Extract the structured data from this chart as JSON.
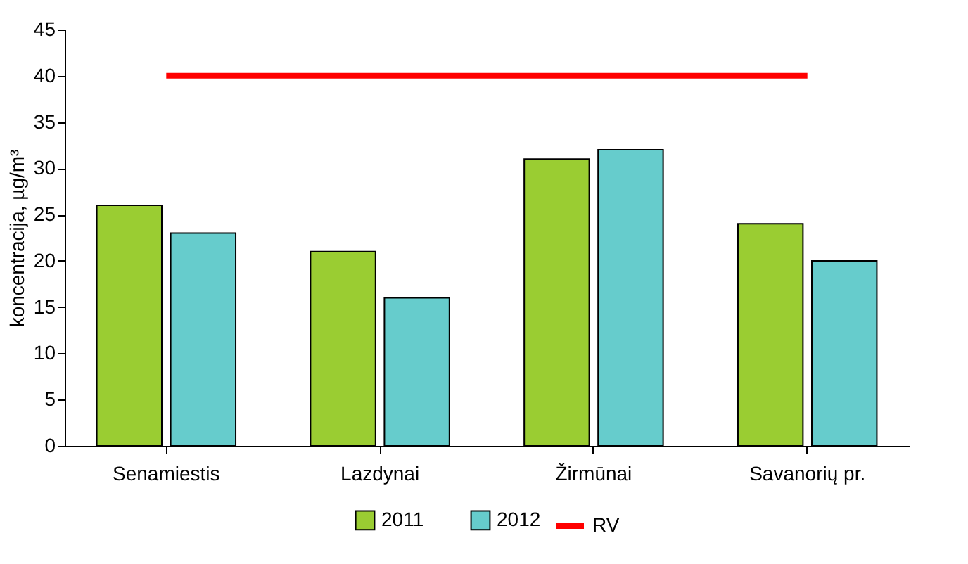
{
  "chart_data": {
    "type": "bar",
    "ylabel": "koncentracija, µg/m³",
    "categories": [
      "Senamiestis",
      "Lazdynai",
      "Žirmūnai",
      "Savanorių pr."
    ],
    "series": [
      {
        "name": "2011",
        "color": "#9acd32",
        "values": [
          26,
          21,
          31,
          24
        ]
      },
      {
        "name": "2012",
        "color": "#66cccc",
        "values": [
          23,
          16,
          32,
          20
        ]
      },
      {
        "name": "RV",
        "type": "line",
        "color": "#ff0000",
        "values": [
          40,
          40,
          40,
          40
        ]
      }
    ],
    "ylim": [
      0,
      45
    ],
    "yticks": [
      0,
      5,
      10,
      15,
      20,
      25,
      30,
      35,
      40,
      45
    ],
    "grid": false,
    "legend": "bottom"
  }
}
